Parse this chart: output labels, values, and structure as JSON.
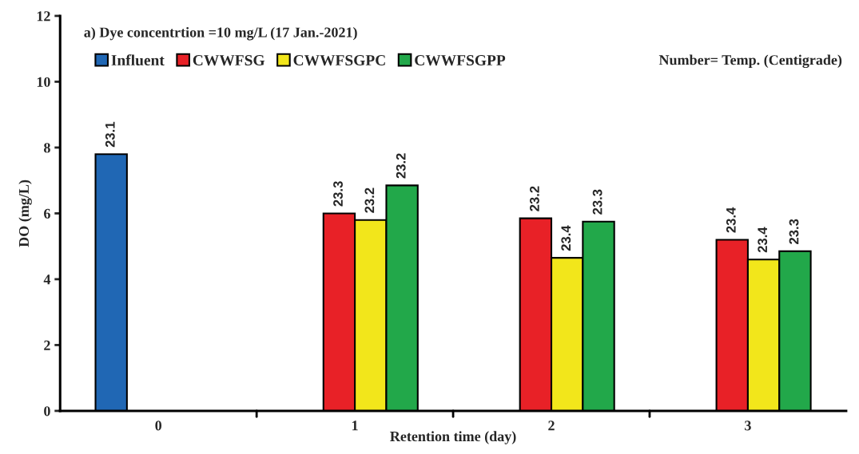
{
  "chart_data": {
    "type": "bar",
    "title": "a) Dye concentrtion =10 mg/L (17 Jan.-2021)",
    "xlabel": "Retention time (day)",
    "ylabel": "DO (mg/L)",
    "categories": [
      "0",
      "1",
      "2",
      "3"
    ],
    "series": [
      {
        "name": "Influent",
        "color": "#2067b4",
        "values": [
          7.8,
          null,
          null,
          null
        ]
      },
      {
        "name": "CWWFSG",
        "color": "#e82127",
        "values": [
          null,
          6.0,
          5.85,
          5.2
        ]
      },
      {
        "name": "CWWFSGPC",
        "color": "#f2e61b",
        "values": [
          null,
          5.8,
          4.65,
          4.6
        ]
      },
      {
        "name": "CWWFSGPP",
        "color": "#22a84a",
        "values": [
          null,
          6.85,
          5.75,
          4.85
        ]
      }
    ],
    "annotations": [
      "Number= Temp. (Centigrade)",
      "23.1",
      "23.3",
      "23.2",
      "23.2",
      "23.2",
      "23.4",
      "23.3",
      "23.4",
      "23.4",
      "23.3"
    ],
    "ylim": [
      0,
      12
    ],
    "yticks": [
      0,
      2,
      4,
      6,
      8,
      10,
      12
    ],
    "grid": false,
    "legend": "top"
  }
}
